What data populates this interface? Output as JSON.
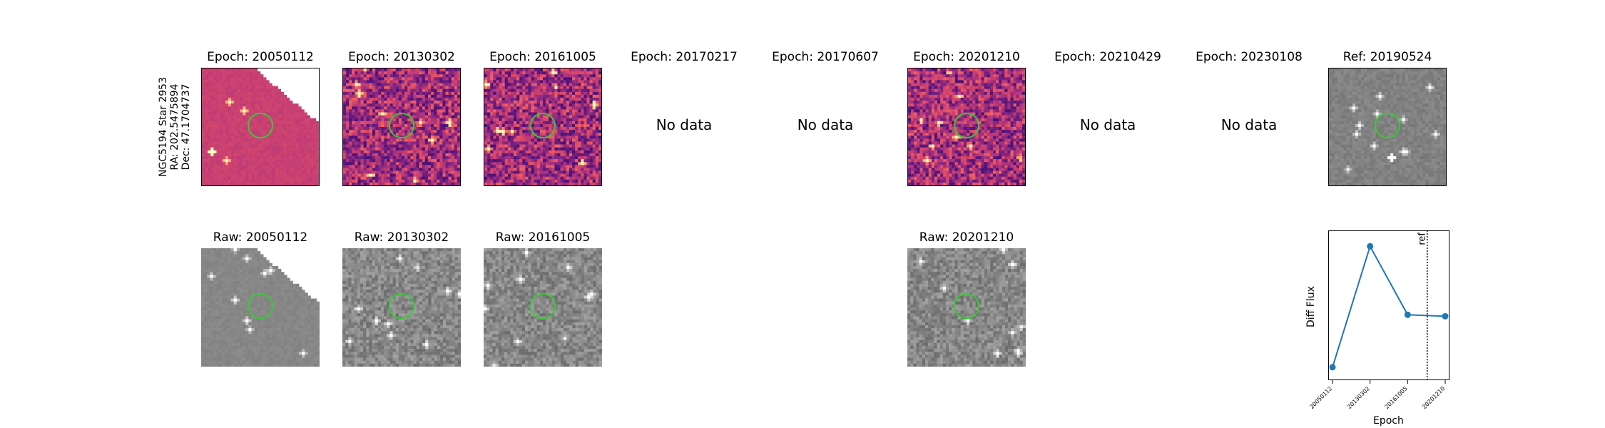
{
  "star": {
    "name": "NGC5194 Star 2953",
    "ra": "RA: 202.5475894",
    "dec": "Dec: 47.1704737"
  },
  "no_data_label": "No data",
  "epochs": [
    {
      "label": "Epoch: 20050112",
      "raw_label": "Raw: 20050112",
      "has_data": true
    },
    {
      "label": "Epoch: 20130302",
      "raw_label": "Raw: 20130302",
      "has_data": true
    },
    {
      "label": "Epoch: 20161005",
      "raw_label": "Raw: 20161005",
      "has_data": true
    },
    {
      "label": "Epoch: 20170217",
      "raw_label": "",
      "has_data": false
    },
    {
      "label": "Epoch: 20170607",
      "raw_label": "",
      "has_data": false
    },
    {
      "label": "Epoch: 20201210",
      "raw_label": "Raw: 20201210",
      "has_data": true
    },
    {
      "label": "Epoch: 20210429",
      "raw_label": "",
      "has_data": false
    },
    {
      "label": "Epoch: 20230108",
      "raw_label": "",
      "has_data": false
    }
  ],
  "reference": {
    "label": "Ref: 20190524"
  },
  "colors": {
    "diff_colormap": "magma",
    "raw_colormap": "gray",
    "aperture": "#33cc33",
    "series": "#1f77b4"
  },
  "chart_data": {
    "type": "line",
    "title": "",
    "xlabel": "Epoch",
    "ylabel": "Diff Flux",
    "categories": [
      "20050112",
      "20130302",
      "20161005",
      "20201210"
    ],
    "values": [
      0.05,
      0.88,
      0.41,
      0.4
    ],
    "ylim": [
      0,
      0.95
    ],
    "reference_line": {
      "label": "ref",
      "between": [
        "20161005",
        "20201210"
      ],
      "position": 0.52
    },
    "grid": false,
    "legend": "none"
  }
}
